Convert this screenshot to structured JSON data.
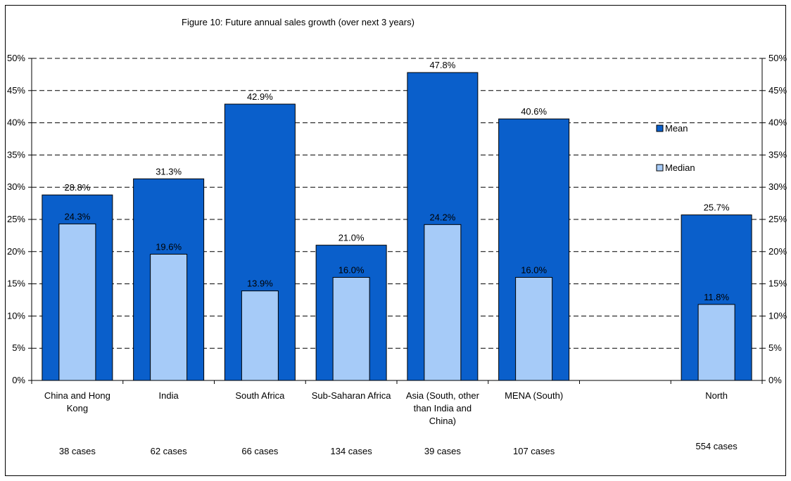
{
  "chart_data": {
    "type": "bar",
    "title": "Figure 10: Future annual sales growth (over next 3 years)",
    "xlabel": "",
    "ylabel": "",
    "ylim": [
      0,
      50
    ],
    "y_ticks": [
      "0%",
      "5%",
      "10%",
      "15%",
      "20%",
      "25%",
      "30%",
      "35%",
      "40%",
      "45%",
      "50%"
    ],
    "categories": [
      "China and Hong Kong",
      "India",
      "South Africa",
      "Sub-Saharan Africa",
      "Asia (South, other than India and China)",
      "MENA (South)",
      "",
      "North"
    ],
    "category_lines": [
      [
        "China and Hong",
        "Kong"
      ],
      [
        "India"
      ],
      [
        "South Africa"
      ],
      [
        "Sub-Saharan Africa"
      ],
      [
        "Asia (South, other",
        "than India and",
        "China)"
      ],
      [
        "MENA (South)"
      ],
      [],
      [
        "North"
      ]
    ],
    "cases": [
      "38 cases",
      "62 cases",
      "66 cases",
      "134 cases",
      "39 cases",
      "107 cases",
      "",
      "554 cases"
    ],
    "series": [
      {
        "name": "Mean",
        "values": [
          28.8,
          31.3,
          42.9,
          21.0,
          47.8,
          40.6,
          null,
          25.7
        ],
        "labels": [
          "28.8%",
          "31.3%",
          "42.9%",
          "21.0%",
          "47.8%",
          "40.6%",
          "",
          "25.7%"
        ],
        "color": "#0a5fcb"
      },
      {
        "name": "Median",
        "values": [
          24.3,
          19.6,
          13.9,
          16.0,
          24.2,
          16.0,
          null,
          11.8
        ],
        "labels": [
          "24.3%",
          "19.6%",
          "13.9%",
          "16.0%",
          "24.2%",
          "16.0%",
          "",
          "11.8%"
        ],
        "color": "#a6cbf8"
      }
    ],
    "legend": "right",
    "grid": true
  }
}
